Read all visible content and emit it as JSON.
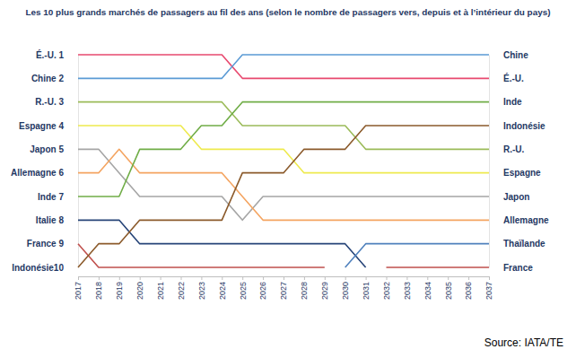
{
  "chart_data": {
    "type": "line",
    "title": "Les 10 plus grands marchés de passagers au fil des ans (selon le nombre de passagers vers, depuis et à l’intérieur du pays)",
    "source": "Source: IATA/TE",
    "x": [
      2017,
      2018,
      2019,
      2020,
      2021,
      2022,
      2023,
      2024,
      2025,
      2026,
      2027,
      2028,
      2029,
      2030,
      2031,
      2032,
      2033,
      2034,
      2035,
      2036,
      2037
    ],
    "xlim": [
      2017,
      2037
    ],
    "xticks": [
      2017,
      2018,
      2019,
      2020,
      2021,
      2022,
      2023,
      2024,
      2025,
      2026,
      2027,
      2028,
      2029,
      2030,
      2031,
      2032,
      2033,
      2034,
      2035,
      2036,
      2037
    ],
    "ylim": [
      10,
      1
    ],
    "yticks": [
      {
        "value": 1,
        "label": "É.-U. 1"
      },
      {
        "value": 2,
        "label": "Chine 2"
      },
      {
        "value": 3,
        "label": "R.-U. 3"
      },
      {
        "value": 4,
        "label": "Espagne 4"
      },
      {
        "value": 5,
        "label": "Japon 5"
      },
      {
        "value": 6,
        "label": "Allemagne 6"
      },
      {
        "value": 7,
        "label": "Inde 7"
      },
      {
        "value": 8,
        "label": "Italie 8"
      },
      {
        "value": 9,
        "label": "France 9"
      },
      {
        "value": 10,
        "label": "Indonésie10"
      }
    ],
    "y2lim": [
      10,
      1
    ],
    "y2ticks": [
      {
        "value": 1,
        "label": "Chine"
      },
      {
        "value": 2,
        "label": "É.-U."
      },
      {
        "value": 3,
        "label": "Inde"
      },
      {
        "value": 4,
        "label": "Indonésie"
      },
      {
        "value": 5,
        "label": "R.-U."
      },
      {
        "value": 6,
        "label": "Espagne"
      },
      {
        "value": 7,
        "label": "Japon"
      },
      {
        "value": 8,
        "label": "Allemagne"
      },
      {
        "value": 9,
        "label": "Thaïlande"
      },
      {
        "value": 10,
        "label": "France"
      }
    ],
    "series": [
      {
        "name": "É.-U.",
        "color": "#e8496f",
        "values": [
          1,
          1,
          1,
          1,
          1,
          1,
          1,
          1,
          2,
          2,
          2,
          2,
          2,
          2,
          2,
          2,
          2,
          2,
          2,
          2,
          2
        ]
      },
      {
        "name": "Chine",
        "color": "#5b9bd5",
        "values": [
          2,
          2,
          2,
          2,
          2,
          2,
          2,
          2,
          1,
          1,
          1,
          1,
          1,
          1,
          1,
          1,
          1,
          1,
          1,
          1,
          1
        ]
      },
      {
        "name": "R.-U.",
        "color": "#9bbb59",
        "values": [
          3,
          3,
          3,
          3,
          3,
          3,
          3,
          3,
          4,
          4,
          4,
          4,
          4,
          4,
          5,
          5,
          5,
          5,
          5,
          5,
          5
        ]
      },
      {
        "name": "Espagne",
        "color": "#eeea4e",
        "values": [
          4,
          4,
          4,
          4,
          4,
          4,
          5,
          5,
          5,
          5,
          5,
          6,
          6,
          6,
          6,
          6,
          6,
          6,
          6,
          6,
          6
        ]
      },
      {
        "name": "Japon",
        "color": "#a5a5a5",
        "values": [
          5,
          5,
          6,
          7,
          7,
          7,
          7,
          7,
          8,
          7,
          7,
          7,
          7,
          7,
          7,
          7,
          7,
          7,
          7,
          7,
          7
        ]
      },
      {
        "name": "Allemagne",
        "color": "#f4a460",
        "values": [
          6,
          6,
          5,
          6,
          6,
          6,
          6,
          6,
          7,
          8,
          8,
          8,
          8,
          8,
          8,
          8,
          8,
          8,
          8,
          8,
          8
        ]
      },
      {
        "name": "Inde",
        "color": "#70ad47",
        "values": [
          7,
          7,
          7,
          5,
          5,
          5,
          4,
          4,
          3,
          3,
          3,
          3,
          3,
          3,
          3,
          3,
          3,
          3,
          3,
          3,
          3
        ]
      },
      {
        "name": "Italie",
        "color": "#264478",
        "values": [
          8,
          8,
          8,
          9,
          9,
          9,
          9,
          9,
          9,
          9,
          9,
          9,
          9,
          9,
          10,
          null,
          null,
          null,
          null,
          null,
          null
        ]
      },
      {
        "name": "France",
        "color": "#c0504d",
        "values": [
          9,
          10,
          10,
          10,
          10,
          10,
          10,
          10,
          10,
          10,
          10,
          10,
          10,
          null,
          null,
          10,
          10,
          10,
          10,
          10,
          10
        ]
      },
      {
        "name": "Indonésie",
        "color": "#8b5a2b",
        "values": [
          10,
          9,
          9,
          8,
          8,
          8,
          8,
          8,
          6,
          6,
          6,
          5,
          5,
          5,
          4,
          4,
          4,
          4,
          4,
          4,
          4
        ]
      },
      {
        "name": "Thaïlande",
        "color": "#4f81bd",
        "values": [
          null,
          null,
          null,
          null,
          null,
          null,
          null,
          null,
          null,
          null,
          null,
          null,
          null,
          10,
          9,
          9,
          9,
          9,
          9,
          9,
          9
        ]
      }
    ]
  }
}
